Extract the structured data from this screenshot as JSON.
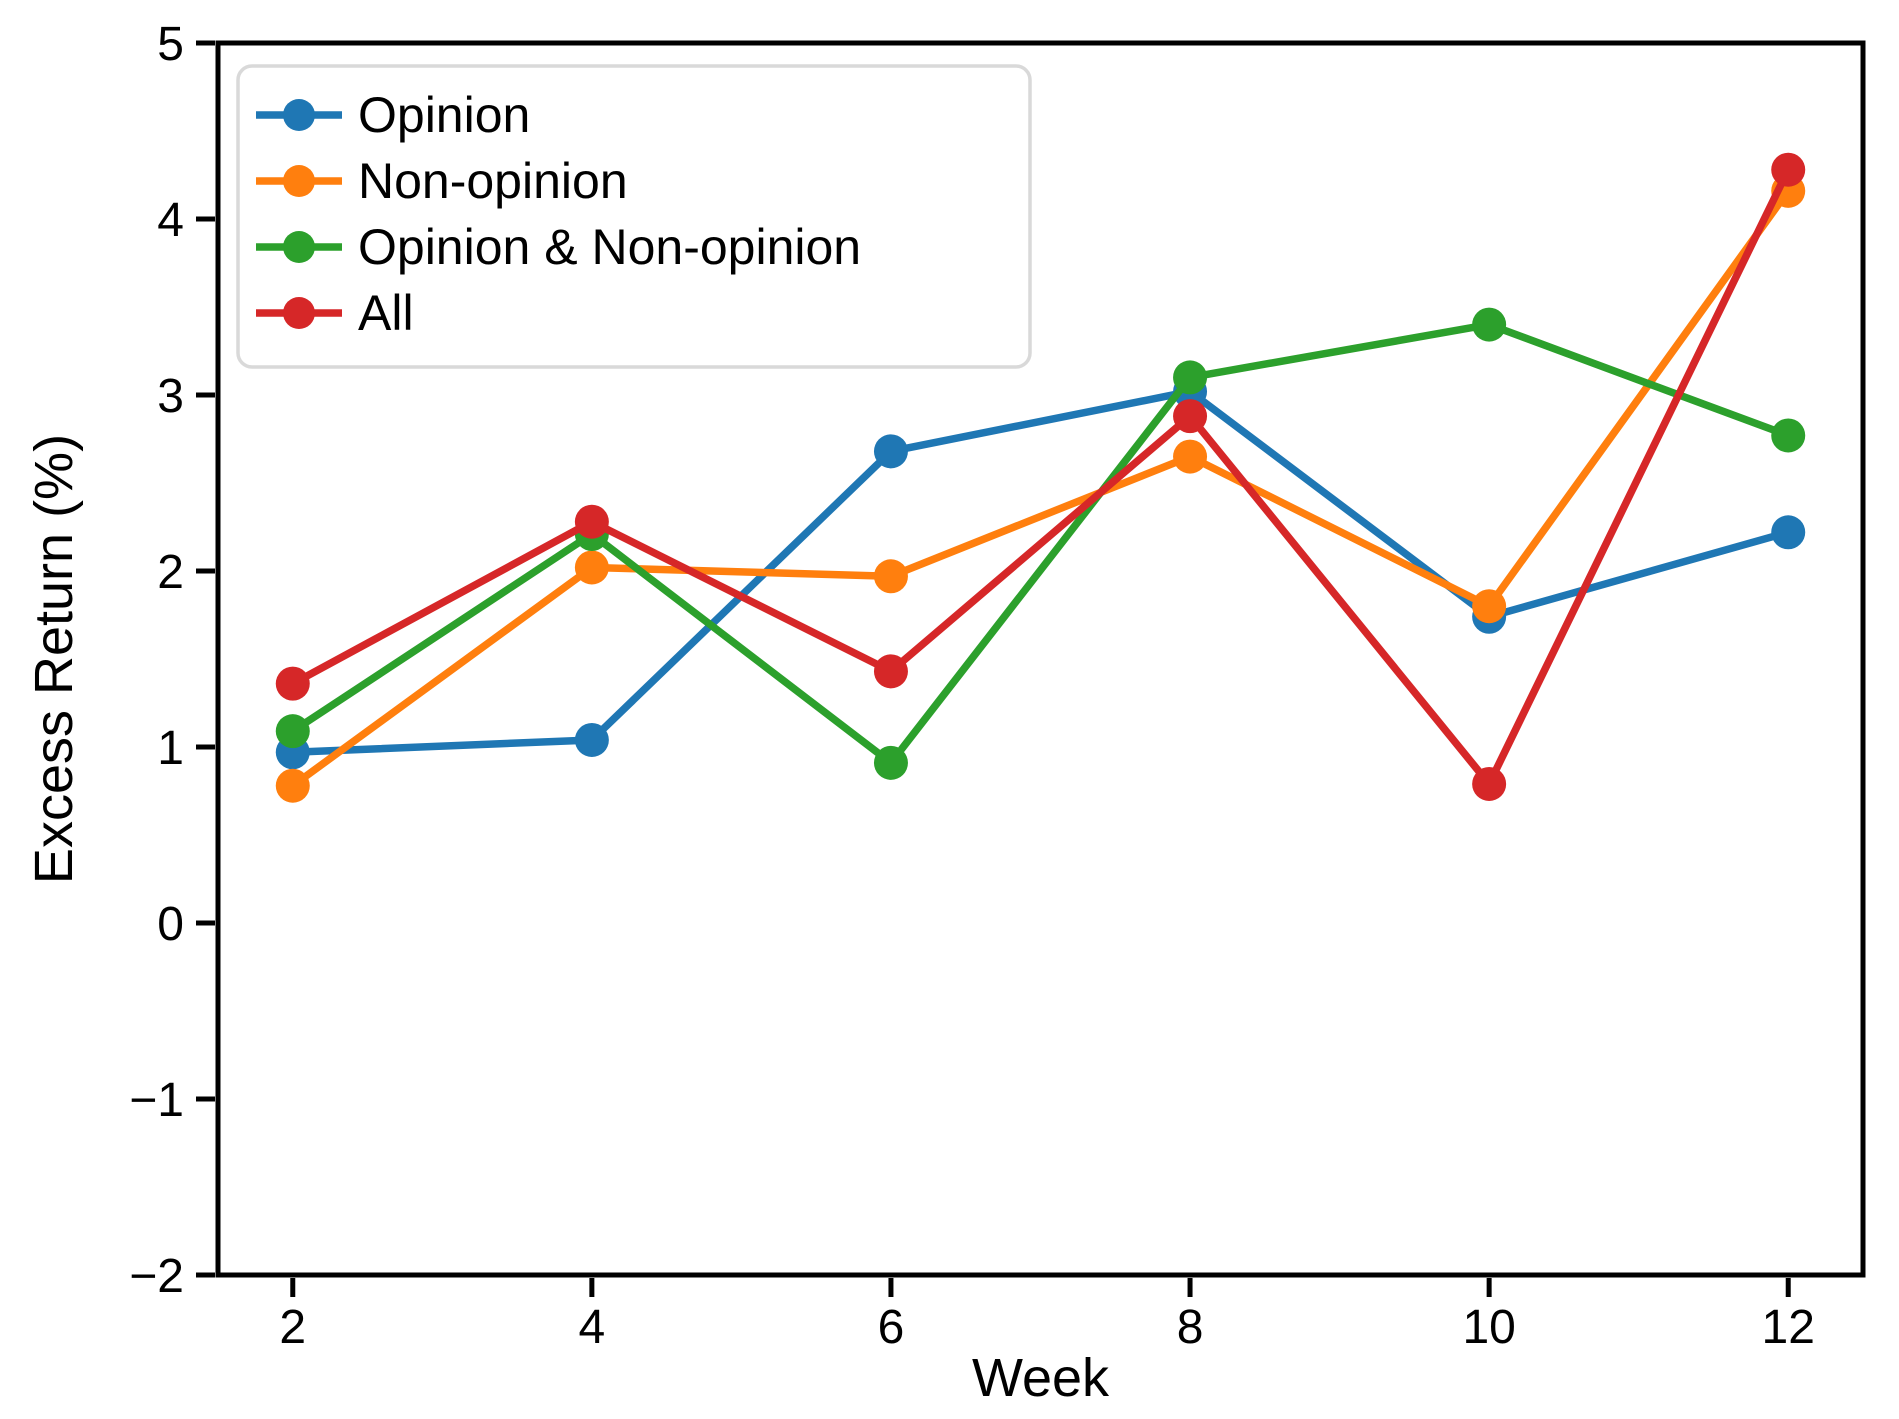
{
  "chart_data": {
    "type": "line",
    "xlabel": "Week",
    "ylabel": "Excess Return (%)",
    "x": [
      2,
      4,
      6,
      8,
      10,
      12
    ],
    "xtick_labels": [
      "2",
      "4",
      "6",
      "8",
      "10",
      "12"
    ],
    "yticks": [
      -2,
      -1,
      0,
      1,
      2,
      3,
      4,
      5
    ],
    "ytick_labels": [
      "−2",
      "−1",
      "0",
      "1",
      "2",
      "3",
      "4",
      "5"
    ],
    "xlim": [
      1.5,
      12.5
    ],
    "ylim": [
      -2,
      5
    ],
    "grid": false,
    "legend_position": "upper-left",
    "marker": "circle",
    "series": [
      {
        "name": "Opinion",
        "color": "#1f77b4",
        "values": [
          0.97,
          1.04,
          2.68,
          3.02,
          1.74,
          2.22
        ]
      },
      {
        "name": "Non-opinion",
        "color": "#ff7f0e",
        "values": [
          0.78,
          2.02,
          1.97,
          2.65,
          1.8,
          4.16
        ]
      },
      {
        "name": "Opinion & Non-opinion",
        "color": "#2ca02c",
        "values": [
          1.09,
          2.21,
          0.91,
          3.1,
          3.4,
          2.77
        ]
      },
      {
        "name": "All",
        "color": "#d62728",
        "values": [
          1.36,
          2.28,
          1.43,
          2.88,
          0.79,
          4.28
        ]
      }
    ],
    "axis_color": "#000000",
    "legend_border_color": "#d9d9d9",
    "background_color": "#ffffff"
  }
}
